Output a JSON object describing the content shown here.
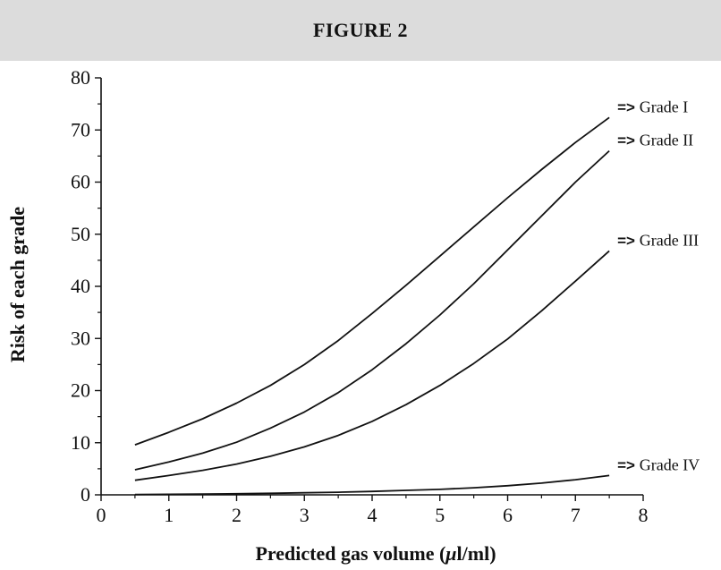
{
  "header": {
    "title": "FIGURE 2"
  },
  "chart_data": {
    "type": "line",
    "title": "FIGURE 2",
    "xlabel_prefix": "Predicted gas volume (",
    "xlabel_unit_greek": "μ",
    "xlabel_suffix": "l/ml)",
    "ylabel": "Risk of each grade",
    "xlim": [
      0,
      8
    ],
    "ylim": [
      0,
      80
    ],
    "xticks": [
      0,
      1,
      2,
      3,
      4,
      5,
      6,
      7,
      8
    ],
    "yticks": [
      0,
      10,
      20,
      30,
      40,
      50,
      60,
      70,
      80
    ],
    "arrow_text": "=>",
    "x": [
      0.5,
      1,
      1.5,
      2,
      2.5,
      3,
      3.5,
      4,
      4.5,
      5,
      5.5,
      6,
      6.5,
      7,
      7.5
    ],
    "series": [
      {
        "name": "Grade I",
        "values": [
          9.6,
          12,
          14.6,
          17.6,
          21,
          25,
          29.6,
          34.8,
          40.2,
          45.8,
          51.4,
          57,
          62.4,
          67.6,
          72.4
        ]
      },
      {
        "name": "Grade II",
        "values": [
          4.8,
          6.3,
          8,
          10.1,
          12.8,
          15.9,
          19.6,
          24,
          29,
          34.5,
          40.5,
          47,
          53.5,
          60,
          66
        ]
      },
      {
        "name": "Grade III",
        "values": [
          2.8,
          3.7,
          4.7,
          5.9,
          7.4,
          9.2,
          11.4,
          14.1,
          17.3,
          21,
          25.2,
          29.9,
          35.3,
          41,
          46.8
        ]
      },
      {
        "name": "Grade IV",
        "values": [
          0.05,
          0.1,
          0.15,
          0.2,
          0.3,
          0.4,
          0.5,
          0.65,
          0.85,
          1.05,
          1.35,
          1.75,
          2.25,
          2.9,
          3.7
        ]
      }
    ],
    "grid": false,
    "legend": "inline at line ends"
  }
}
